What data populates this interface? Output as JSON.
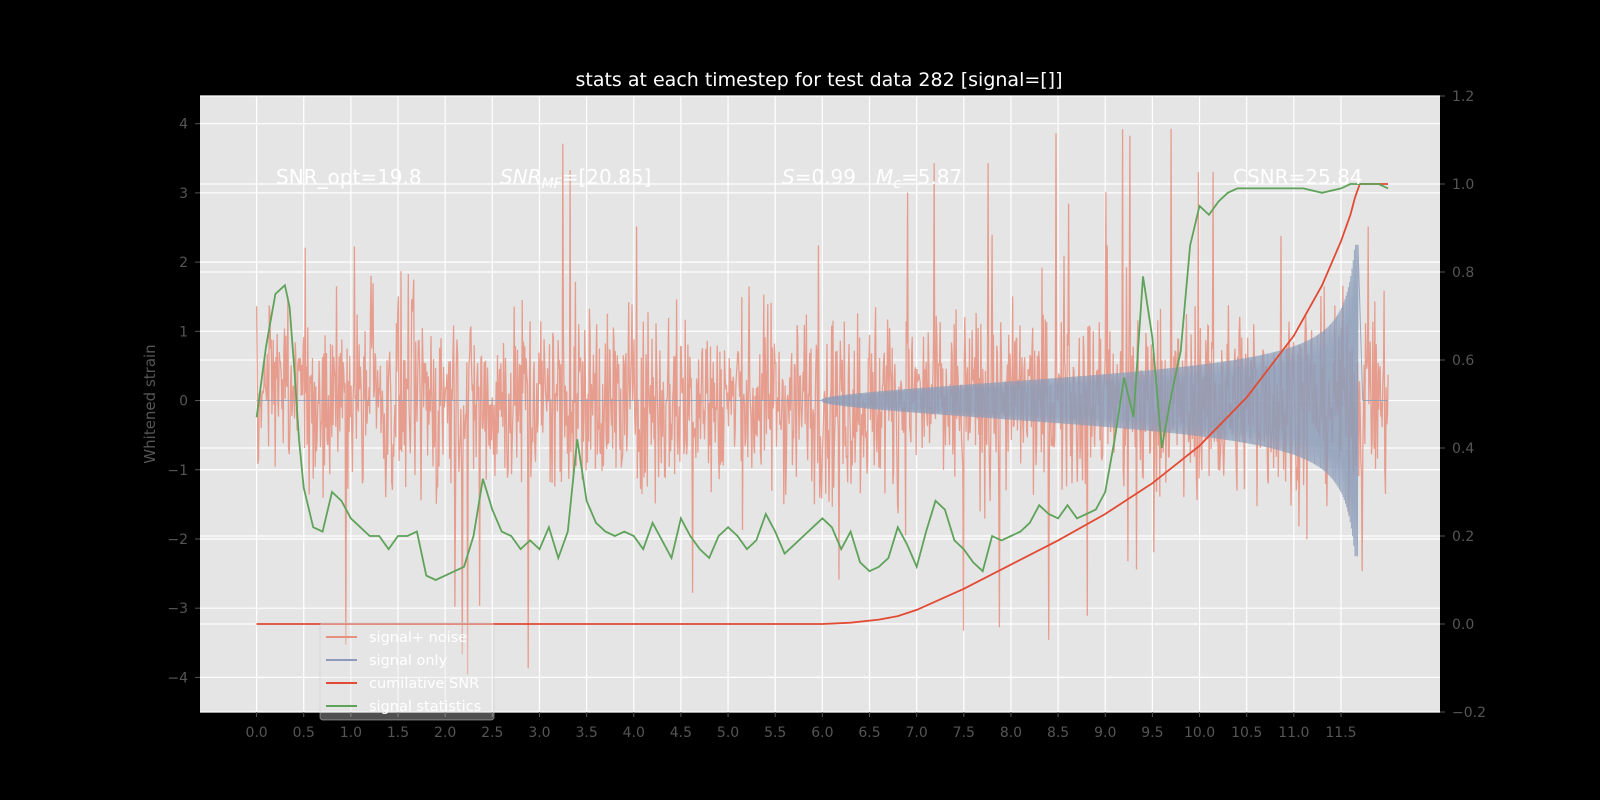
{
  "chart_data": {
    "type": "line",
    "title": "stats at each timestep for test data 282 [signal=[]]",
    "ylabel": "Whitened strain",
    "xlabel": "",
    "xlim": [
      -0.6,
      12.55
    ],
    "ylim": [
      -4.5,
      4.4
    ],
    "y2lim": [
      -0.2,
      1.2
    ],
    "grid": true,
    "legend_position": "lower-left",
    "x_ticks": [
      "0.0",
      "0.5",
      "1.0",
      "1.5",
      "2.0",
      "2.5",
      "3.0",
      "3.5",
      "4.0",
      "4.5",
      "5.0",
      "5.5",
      "6.0",
      "6.5",
      "7.0",
      "7.5",
      "8.0",
      "8.5",
      "9.0",
      "9.5",
      "10.0",
      "10.5",
      "11.0",
      "11.5"
    ],
    "y_ticks": [
      "4",
      "3",
      "2",
      "1",
      "0",
      "−1",
      "−2",
      "−3",
      "−4"
    ],
    "y2_ticks": [
      "1.2",
      "1.0",
      "0.8",
      "0.6",
      "0.4",
      "0.2",
      "0.0",
      "−0.2"
    ],
    "annotations": {
      "snr_opt": "SNR_opt=19.8",
      "snr_mf_main": "SNR",
      "snr_mf_sub": "MF",
      "snr_mf_value": "=[20.85]",
      "s_main": "S",
      "s_value": "=0.99",
      "mc_main": "M",
      "mc_sub": "c",
      "mc_value": "=5.87",
      "csnr": "CSNR=25.84"
    },
    "series": [
      {
        "name": "signal+ noise",
        "color": "#e8907f",
        "envelope": {
          "t_start": 0.0,
          "t_end": 12.0,
          "typical_abs": 2.0,
          "max_abs": 4.0
        }
      },
      {
        "name": "signal only",
        "color": "#8c9cb8",
        "chirp": {
          "t_start": 6.0,
          "t_merger": 11.68,
          "peak_amplitude": 2.25
        }
      },
      {
        "name": "cumilative SNR",
        "color": "#e24a33",
        "axis": "right",
        "x": [
          0.0,
          6.0,
          6.3,
          6.6,
          6.8,
          7.0,
          7.5,
          8.0,
          8.5,
          9.0,
          9.5,
          10.0,
          10.5,
          11.0,
          11.3,
          11.5,
          11.6,
          11.65,
          11.7,
          12.0
        ],
        "y": [
          0.0,
          0.0,
          0.003,
          0.01,
          0.018,
          0.032,
          0.08,
          0.135,
          0.19,
          0.25,
          0.32,
          0.405,
          0.515,
          0.655,
          0.77,
          0.87,
          0.93,
          0.97,
          1.0,
          1.0
        ]
      },
      {
        "name": "signal statistics",
        "color": "#5fa35a",
        "axis": "right",
        "x": [
          0.0,
          0.1,
          0.2,
          0.3,
          0.35,
          0.4,
          0.45,
          0.5,
          0.6,
          0.7,
          0.8,
          0.9,
          1.0,
          1.1,
          1.2,
          1.3,
          1.4,
          1.5,
          1.6,
          1.7,
          1.8,
          1.9,
          2.0,
          2.1,
          2.2,
          2.3,
          2.4,
          2.5,
          2.6,
          2.7,
          2.8,
          2.9,
          3.0,
          3.1,
          3.2,
          3.3,
          3.4,
          3.5,
          3.6,
          3.7,
          3.8,
          3.9,
          4.0,
          4.1,
          4.2,
          4.3,
          4.4,
          4.5,
          4.6,
          4.7,
          4.8,
          4.9,
          5.0,
          5.1,
          5.2,
          5.3,
          5.4,
          5.5,
          5.6,
          5.7,
          5.8,
          5.9,
          6.0,
          6.1,
          6.2,
          6.3,
          6.4,
          6.5,
          6.6,
          6.7,
          6.8,
          6.9,
          7.0,
          7.1,
          7.2,
          7.3,
          7.4,
          7.5,
          7.6,
          7.7,
          7.8,
          7.9,
          8.0,
          8.1,
          8.2,
          8.3,
          8.4,
          8.5,
          8.6,
          8.7,
          8.8,
          8.9,
          9.0,
          9.1,
          9.2,
          9.3,
          9.4,
          9.5,
          9.6,
          9.7,
          9.8,
          9.9,
          10.0,
          10.1,
          10.2,
          10.3,
          10.4,
          10.5,
          10.7,
          10.9,
          11.1,
          11.3,
          11.5,
          11.6,
          11.7,
          11.8,
          11.9,
          12.0
        ],
        "y": [
          0.47,
          0.63,
          0.75,
          0.77,
          0.72,
          0.58,
          0.42,
          0.31,
          0.22,
          0.21,
          0.3,
          0.28,
          0.24,
          0.22,
          0.2,
          0.2,
          0.17,
          0.2,
          0.2,
          0.21,
          0.11,
          0.1,
          0.11,
          0.12,
          0.13,
          0.2,
          0.33,
          0.26,
          0.21,
          0.2,
          0.17,
          0.19,
          0.17,
          0.22,
          0.15,
          0.21,
          0.42,
          0.28,
          0.23,
          0.21,
          0.2,
          0.21,
          0.2,
          0.17,
          0.23,
          0.19,
          0.15,
          0.24,
          0.2,
          0.17,
          0.15,
          0.2,
          0.22,
          0.2,
          0.17,
          0.19,
          0.25,
          0.21,
          0.16,
          0.18,
          0.2,
          0.22,
          0.24,
          0.22,
          0.17,
          0.21,
          0.14,
          0.12,
          0.13,
          0.15,
          0.22,
          0.18,
          0.13,
          0.21,
          0.28,
          0.26,
          0.19,
          0.17,
          0.14,
          0.12,
          0.2,
          0.19,
          0.2,
          0.21,
          0.23,
          0.27,
          0.25,
          0.24,
          0.27,
          0.24,
          0.25,
          0.26,
          0.3,
          0.42,
          0.56,
          0.47,
          0.79,
          0.65,
          0.4,
          0.52,
          0.62,
          0.86,
          0.95,
          0.93,
          0.96,
          0.98,
          0.99,
          0.99,
          0.99,
          0.99,
          0.99,
          0.98,
          0.99,
          1.0,
          1.0,
          1.0,
          1.0,
          0.99
        ]
      }
    ]
  }
}
